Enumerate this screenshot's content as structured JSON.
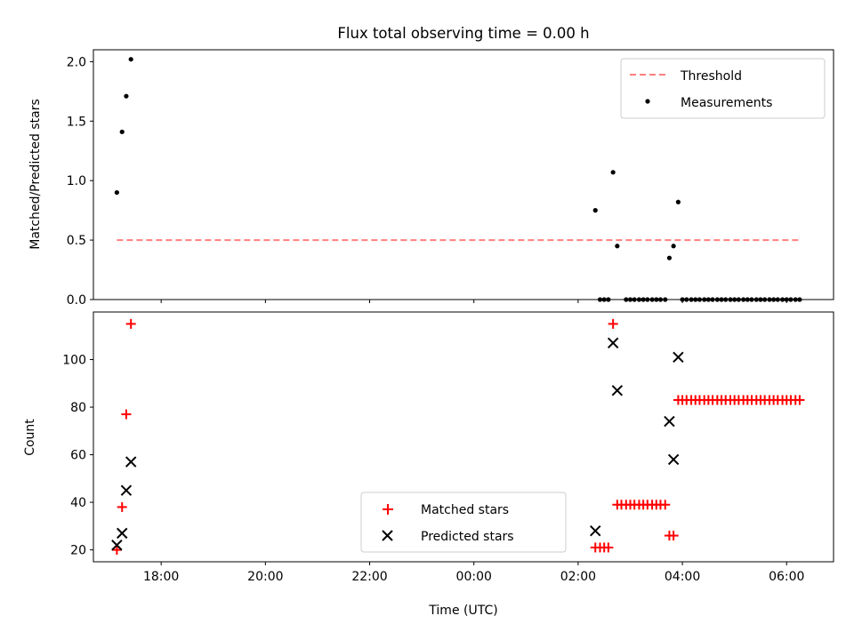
{
  "chart_data": {
    "title": "Flux total observing time = 0.00 h",
    "xlabel": "Time (UTC)",
    "x_ticks": [
      "18:00",
      "20:00",
      "22:00",
      "00:00",
      "02:00",
      "04:00",
      "06:00"
    ],
    "x_tick_hours": [
      18,
      20,
      22,
      24,
      26,
      28,
      30
    ],
    "xlim_hours": [
      16.7,
      30.9
    ],
    "panels": [
      {
        "type": "scatter",
        "ylabel": "Matched/Predicted stars",
        "ylim": [
          0,
          2.1
        ],
        "y_ticks": [
          0.0,
          0.5,
          1.0,
          1.5,
          2.0
        ],
        "y_tick_labels": [
          "0.0",
          "0.5",
          "1.0",
          "1.5",
          "2.0"
        ],
        "legend_position": "top-right",
        "threshold": {
          "name": "Threshold",
          "value": 0.5,
          "x_range_hours": [
            17.15,
            30.25
          ],
          "color": "#ff7f7f",
          "style": "dashed"
        },
        "series": [
          {
            "name": "Measurements",
            "marker": "dot",
            "color": "#000000",
            "points": [
              [
                17.15,
                0.9
              ],
              [
                17.25,
                1.41
              ],
              [
                17.33,
                1.71
              ],
              [
                17.42,
                2.02
              ],
              [
                26.33,
                0.75
              ],
              [
                26.42,
                0.0
              ],
              [
                26.5,
                0.0
              ],
              [
                26.58,
                0.0
              ],
              [
                26.67,
                1.07
              ],
              [
                26.75,
                0.45
              ],
              [
                26.92,
                0.0
              ],
              [
                27.0,
                0.0
              ],
              [
                27.08,
                0.0
              ],
              [
                27.17,
                0.0
              ],
              [
                27.25,
                0.0
              ],
              [
                27.33,
                0.0
              ],
              [
                27.42,
                0.0
              ],
              [
                27.5,
                0.0
              ],
              [
                27.58,
                0.0
              ],
              [
                27.67,
                0.0
              ],
              [
                27.75,
                0.35
              ],
              [
                27.83,
                0.45
              ],
              [
                27.92,
                0.82
              ],
              [
                28.0,
                0.0
              ],
              [
                28.08,
                0.0
              ],
              [
                28.17,
                0.0
              ],
              [
                28.25,
                0.0
              ],
              [
                28.33,
                0.0
              ],
              [
                28.42,
                0.0
              ],
              [
                28.5,
                0.0
              ],
              [
                28.58,
                0.0
              ],
              [
                28.67,
                0.0
              ],
              [
                28.75,
                0.0
              ],
              [
                28.83,
                0.0
              ],
              [
                28.92,
                0.0
              ],
              [
                29.0,
                0.0
              ],
              [
                29.08,
                0.0
              ],
              [
                29.17,
                0.0
              ],
              [
                29.25,
                0.0
              ],
              [
                29.33,
                0.0
              ],
              [
                29.42,
                0.0
              ],
              [
                29.5,
                0.0
              ],
              [
                29.58,
                0.0
              ],
              [
                29.67,
                0.0
              ],
              [
                29.75,
                0.0
              ],
              [
                29.83,
                0.0
              ],
              [
                29.92,
                0.0
              ],
              [
                30.0,
                0.0
              ],
              [
                30.08,
                0.0
              ],
              [
                30.17,
                0.0
              ],
              [
                30.25,
                0.0
              ]
            ]
          }
        ]
      },
      {
        "type": "scatter",
        "ylabel": "Count",
        "ylim": [
          15,
          120
        ],
        "y_ticks": [
          20,
          40,
          60,
          80,
          100
        ],
        "y_tick_labels": [
          "20",
          "40",
          "60",
          "80",
          "100"
        ],
        "legend_position": "lower-center",
        "series": [
          {
            "name": "Matched stars",
            "marker": "plus",
            "color": "#ff0000",
            "points": [
              [
                17.15,
                20
              ],
              [
                17.25,
                38
              ],
              [
                17.33,
                77
              ],
              [
                17.42,
                115
              ],
              [
                26.33,
                21
              ],
              [
                26.42,
                21
              ],
              [
                26.5,
                21
              ],
              [
                26.58,
                21
              ],
              [
                26.67,
                115
              ],
              [
                26.75,
                39
              ],
              [
                26.83,
                39
              ],
              [
                26.92,
                39
              ],
              [
                27.0,
                39
              ],
              [
                27.08,
                39
              ],
              [
                27.17,
                39
              ],
              [
                27.25,
                39
              ],
              [
                27.33,
                39
              ],
              [
                27.42,
                39
              ],
              [
                27.5,
                39
              ],
              [
                27.58,
                39
              ],
              [
                27.67,
                39
              ],
              [
                27.75,
                26
              ],
              [
                27.83,
                26
              ],
              [
                27.92,
                83
              ],
              [
                28.0,
                83
              ],
              [
                28.08,
                83
              ],
              [
                28.17,
                83
              ],
              [
                28.25,
                83
              ],
              [
                28.33,
                83
              ],
              [
                28.42,
                83
              ],
              [
                28.5,
                83
              ],
              [
                28.58,
                83
              ],
              [
                28.67,
                83
              ],
              [
                28.75,
                83
              ],
              [
                28.83,
                83
              ],
              [
                28.92,
                83
              ],
              [
                29.0,
                83
              ],
              [
                29.08,
                83
              ],
              [
                29.17,
                83
              ],
              [
                29.25,
                83
              ],
              [
                29.33,
                83
              ],
              [
                29.42,
                83
              ],
              [
                29.5,
                83
              ],
              [
                29.58,
                83
              ],
              [
                29.67,
                83
              ],
              [
                29.75,
                83
              ],
              [
                29.83,
                83
              ],
              [
                29.92,
                83
              ],
              [
                30.0,
                83
              ],
              [
                30.08,
                83
              ],
              [
                30.17,
                83
              ],
              [
                30.25,
                83
              ]
            ]
          },
          {
            "name": "Predicted stars",
            "marker": "cross",
            "color": "#000000",
            "points": [
              [
                17.15,
                22
              ],
              [
                17.25,
                27
              ],
              [
                17.33,
                45
              ],
              [
                17.42,
                57
              ],
              [
                26.33,
                28
              ],
              [
                26.67,
                107
              ],
              [
                26.75,
                87
              ],
              [
                27.75,
                74
              ],
              [
                27.83,
                58
              ],
              [
                27.92,
                101
              ]
            ]
          }
        ]
      }
    ]
  }
}
